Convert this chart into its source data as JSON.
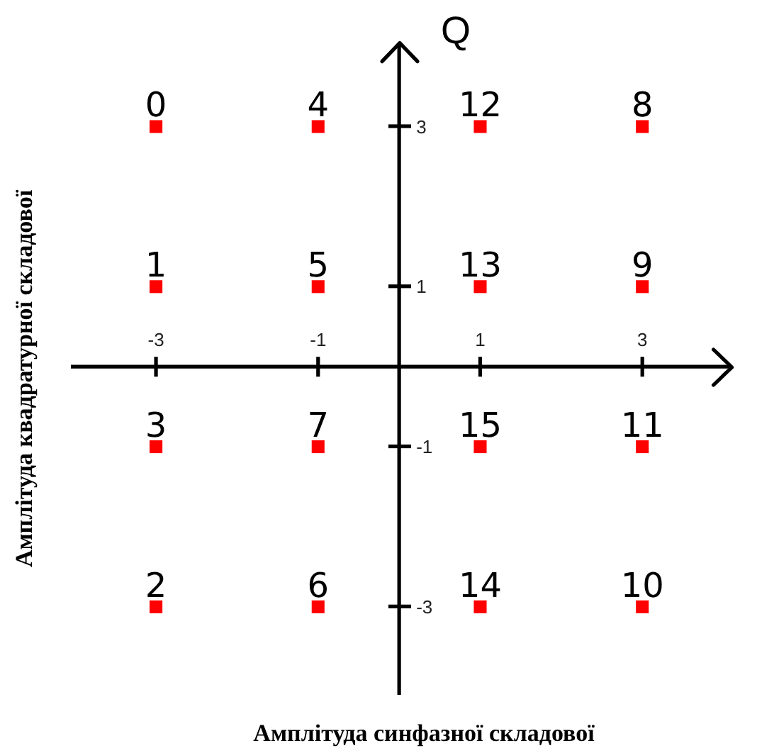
{
  "chart_data": {
    "type": "scatter",
    "xlabel": "Амплітуда синфазної складової",
    "ylabel": "Амплітуда квадратурної складової",
    "x": [
      -3,
      -1,
      1,
      3,
      -3,
      -1,
      1,
      3,
      -3,
      -1,
      1,
      3,
      -3,
      -1,
      1,
      3
    ],
    "values": [
      3,
      3,
      3,
      3,
      1,
      1,
      1,
      1,
      -1,
      -1,
      -1,
      -1,
      -3,
      -3,
      -3,
      -3
    ],
    "color": "#ff0000",
    "marker": "square",
    "xlim": [
      -4.05,
      4.1
    ],
    "ylim": [
      -4.1,
      4.05
    ],
    "xticks": [
      -3,
      -1,
      1,
      3
    ],
    "yticks": [
      -3,
      -1,
      1,
      3
    ],
    "annotations": [
      "Q",
      {
        "text": "0",
        "x": -3,
        "y": 3
      },
      {
        "text": "4",
        "x": -1,
        "y": 3
      },
      {
        "text": "12",
        "x": 1,
        "y": 3
      },
      {
        "text": "8",
        "x": 3,
        "y": 3
      },
      {
        "text": "1",
        "x": -3,
        "y": 1
      },
      {
        "text": "5",
        "x": -1,
        "y": 1
      },
      {
        "text": "13",
        "x": 1,
        "y": 1
      },
      {
        "text": "9",
        "x": 3,
        "y": 1
      },
      {
        "text": "3",
        "x": -3,
        "y": -1
      },
      {
        "text": "7",
        "x": -1,
        "y": -1
      },
      {
        "text": "15",
        "x": 1,
        "y": -1
      },
      {
        "text": "11",
        "x": 3,
        "y": -1
      },
      {
        "text": "2",
        "x": -3,
        "y": -3
      },
      {
        "text": "6",
        "x": -1,
        "y": -3
      },
      {
        "text": "14",
        "x": 1,
        "y": -3
      },
      {
        "text": "10",
        "x": 3,
        "y": -3
      }
    ]
  }
}
